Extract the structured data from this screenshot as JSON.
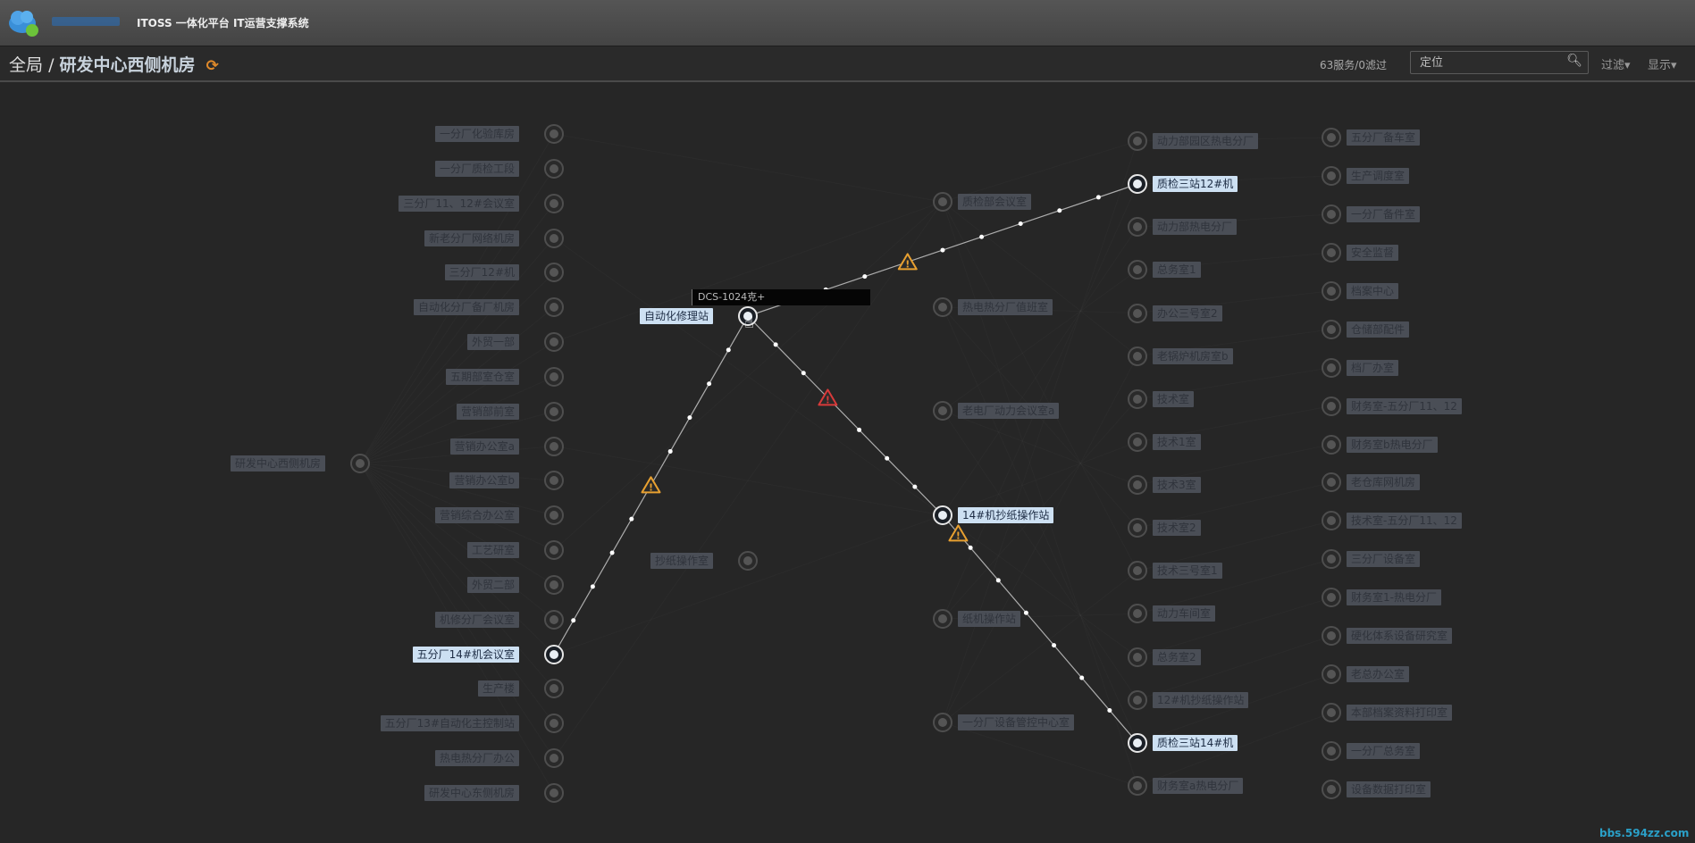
{
  "header": {
    "app_title": "ITOSS 一体化平台 IT运营支撑系统"
  },
  "breadcrumb": {
    "root": "全局",
    "separator": "/",
    "current": "研发中心西侧机房",
    "refresh_icon": "refresh-icon"
  },
  "toolbar": {
    "count": "63服务/0滤过",
    "search_placeholder": "定位",
    "filter_label": "过滤▾",
    "display_label": "显示▾"
  },
  "tooltip": "DCS-1024克+",
  "watermark": "bbs.594zz.com",
  "colors": {
    "warning": "#e8a030",
    "critical": "#d83a3a",
    "highlight": "#cde0f2"
  },
  "graph": {
    "root": {
      "label": "研发中心西侧机房",
      "highlighted": false
    },
    "hub": [
      {
        "label": "自动化修理站",
        "highlighted": true
      },
      {
        "label": "抄纸操作室",
        "highlighted": false
      }
    ],
    "left": [
      {
        "label": "一分厂化验库房",
        "highlighted": false
      },
      {
        "label": "一分厂质检工段",
        "highlighted": false
      },
      {
        "label": "三分厂11、12#会议室",
        "highlighted": false
      },
      {
        "label": "新老分厂网络机房",
        "highlighted": false
      },
      {
        "label": "三分厂12#机",
        "highlighted": false
      },
      {
        "label": "自动化分厂备厂机房",
        "highlighted": false
      },
      {
        "label": "外贸一部",
        "highlighted": false
      },
      {
        "label": "五期部室仓室",
        "highlighted": false
      },
      {
        "label": "营销部前室",
        "highlighted": false
      },
      {
        "label": "营销办公室a",
        "highlighted": false
      },
      {
        "label": "营销办公室b",
        "highlighted": false
      },
      {
        "label": "营销综合办公室",
        "highlighted": false
      },
      {
        "label": "工艺研室",
        "highlighted": false
      },
      {
        "label": "外贸二部",
        "highlighted": false
      },
      {
        "label": "机修分厂会议室",
        "highlighted": false
      },
      {
        "label": "五分厂14#机会议室",
        "highlighted": true
      },
      {
        "label": "生产楼",
        "highlighted": false
      },
      {
        "label": "五分厂13#自动化主控制站",
        "highlighted": false
      },
      {
        "label": "热电热分厂办公",
        "highlighted": false
      },
      {
        "label": "研发中心东侧机房",
        "highlighted": false
      }
    ],
    "middle": [
      {
        "label": "质检部会议室",
        "highlighted": false
      },
      {
        "label": "热电热分厂值班室",
        "highlighted": false
      },
      {
        "label": "老电厂动力会议室a",
        "highlighted": false
      },
      {
        "label": "14#机抄纸操作站",
        "highlighted": true
      },
      {
        "label": "纸机操作站",
        "highlighted": false
      },
      {
        "label": "一分厂设备管控中心室",
        "highlighted": false
      }
    ],
    "col3": [
      {
        "label": "动力部园区热电分厂",
        "highlighted": false
      },
      {
        "label": "质检三站12#机",
        "highlighted": true
      },
      {
        "label": "动力部热电分厂",
        "highlighted": false
      },
      {
        "label": "总务室1",
        "highlighted": false
      },
      {
        "label": "办公三号室2",
        "highlighted": false
      },
      {
        "label": "老锅炉机房室b",
        "highlighted": false
      },
      {
        "label": "技术室",
        "highlighted": false
      },
      {
        "label": "技术1室",
        "highlighted": false
      },
      {
        "label": "技术3室",
        "highlighted": false
      },
      {
        "label": "技术室2",
        "highlighted": false
      },
      {
        "label": "技术三号室1",
        "highlighted": false
      },
      {
        "label": "动力车间室",
        "highlighted": false
      },
      {
        "label": "总务室2",
        "highlighted": false
      },
      {
        "label": "12#机抄纸操作站",
        "highlighted": false
      },
      {
        "label": "质检三站14#机",
        "highlighted": true
      },
      {
        "label": "财务室a热电分厂",
        "highlighted": false
      }
    ],
    "col4": [
      {
        "label": "五分厂备车室",
        "highlighted": false
      },
      {
        "label": "生产调度室",
        "highlighted": false
      },
      {
        "label": "一分厂备件室",
        "highlighted": false
      },
      {
        "label": "安全监督",
        "highlighted": false
      },
      {
        "label": "档案中心",
        "highlighted": false
      },
      {
        "label": "仓储部配件",
        "highlighted": false
      },
      {
        "label": "档厂办室",
        "highlighted": false
      },
      {
        "label": "财务室-五分厂11、12",
        "highlighted": false
      },
      {
        "label": "财务室b热电分厂",
        "highlighted": false
      },
      {
        "label": "老仓库网机房",
        "highlighted": false
      },
      {
        "label": "技术室-五分厂11、12",
        "highlighted": false
      },
      {
        "label": "三分厂设备室",
        "highlighted": false
      },
      {
        "label": "财务室1-热电分厂",
        "highlighted": false
      },
      {
        "label": "硬化体系设备研究室",
        "highlighted": false
      },
      {
        "label": "老总办公室",
        "highlighted": false
      },
      {
        "label": "本部档案资料打印室",
        "highlighted": false
      },
      {
        "label": "一分厂总务室",
        "highlighted": false
      },
      {
        "label": "设备数据打印室",
        "highlighted": false
      }
    ],
    "links": [
      {
        "from": "五分厂14#机会议室",
        "to": "自动化修理站",
        "alert": "warning"
      },
      {
        "from": "自动化修理站",
        "to": "质检三站12#机",
        "alert": "warning"
      },
      {
        "from": "自动化修理站",
        "to": "14#机抄纸操作站",
        "alert": "critical"
      },
      {
        "from": "14#机抄纸操作站",
        "to": "质检三站14#机",
        "alert": "warning"
      }
    ]
  }
}
